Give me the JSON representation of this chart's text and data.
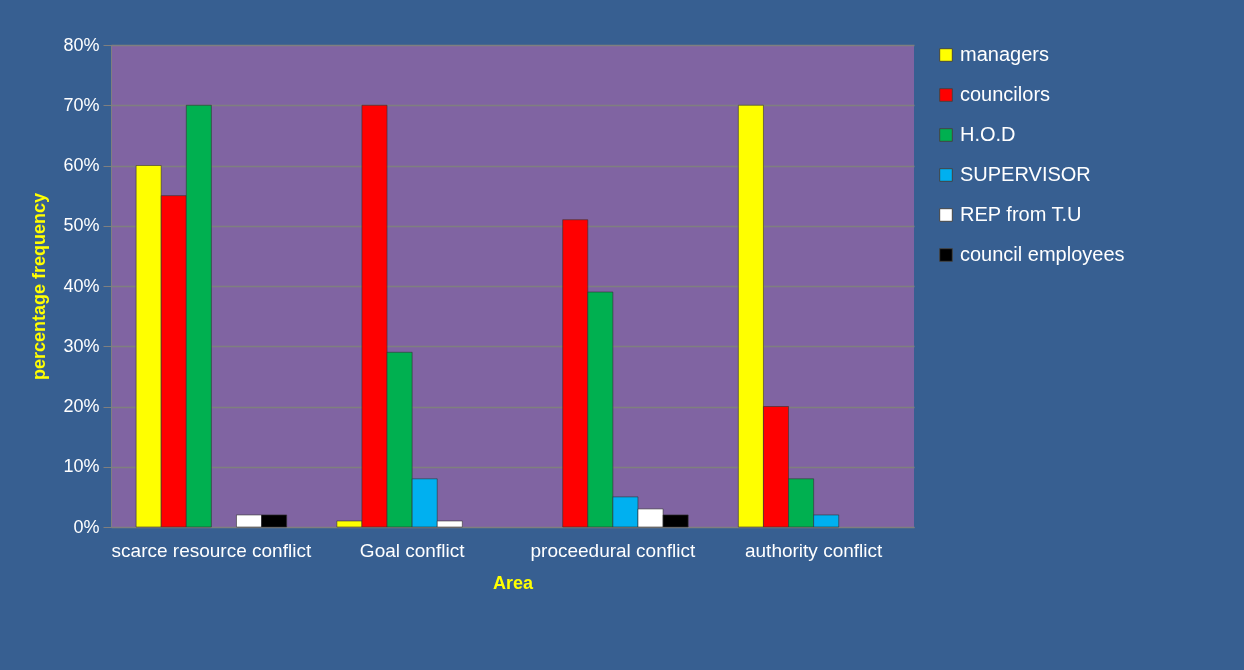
{
  "chart_data": {
    "type": "bar",
    "xlabel": "Area",
    "ylabel": "percentage frequency",
    "categories": [
      "scarce resource conflict",
      "Goal conflict",
      "proceedural conflict",
      "authority conflict"
    ],
    "series": [
      {
        "name": "managers",
        "color": "#ffff00",
        "values": [
          60,
          1,
          null,
          70
        ]
      },
      {
        "name": "councilors",
        "color": "#ff0000",
        "values": [
          55,
          70,
          51,
          20
        ]
      },
      {
        "name": "H.O.D",
        "color": "#00b050",
        "values": [
          70,
          29,
          39,
          8
        ]
      },
      {
        "name": "SUPERVISOR",
        "color": "#00b0f0",
        "values": [
          null,
          8,
          5,
          2
        ]
      },
      {
        "name": "REP from T.U",
        "color": "#ffffff",
        "values": [
          2,
          1,
          3,
          null
        ]
      },
      {
        "name": "council employees",
        "color": "#000000",
        "values": [
          2,
          null,
          2,
          null
        ]
      }
    ],
    "ylim": [
      0,
      80
    ],
    "yticks": [
      {
        "value": 0,
        "label": "0%"
      },
      {
        "value": 10,
        "label": "10%"
      },
      {
        "value": 20,
        "label": "20%"
      },
      {
        "value": 30,
        "label": "30%"
      },
      {
        "value": 40,
        "label": "40%"
      },
      {
        "value": 50,
        "label": "50%"
      },
      {
        "value": 60,
        "label": "60%"
      },
      {
        "value": 70,
        "label": "70%"
      },
      {
        "value": 80,
        "label": "80%"
      }
    ],
    "grid": "y",
    "legend": "right"
  }
}
